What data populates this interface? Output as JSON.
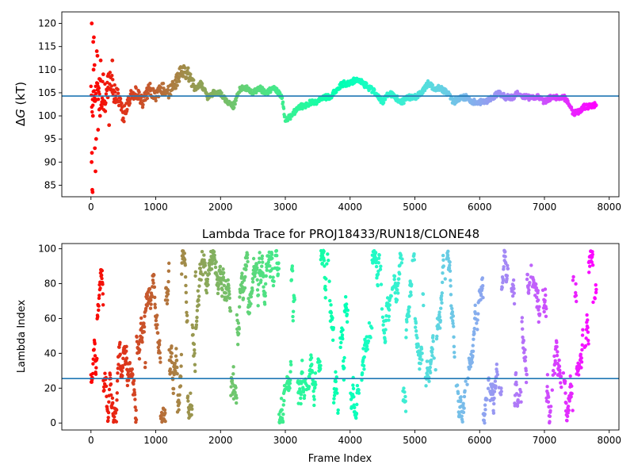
{
  "chart_data": [
    {
      "type": "scatter",
      "title": "",
      "xlabel": "",
      "ylabel": "ΔG (kT)",
      "ylabel_parts": {
        "delta": "Δ",
        "var": "G",
        "unit": " (kT)"
      },
      "xlim": [
        -450,
        8150
      ],
      "ylim": [
        82.5,
        122.5
      ],
      "xticks": [
        0,
        1000,
        2000,
        3000,
        4000,
        5000,
        6000,
        7000,
        8000
      ],
      "yticks": [
        85,
        90,
        95,
        100,
        105,
        110,
        115,
        120
      ],
      "hline": 104.3,
      "n_frames": 7800,
      "colormap": "rainbow (red at frame 0, violet at last frame)",
      "grid": false,
      "legend": "none",
      "trace_knots": [
        [
          0,
          104
        ],
        [
          50,
          104
        ],
        [
          100,
          106
        ],
        [
          150,
          104
        ],
        [
          200,
          104
        ],
        [
          300,
          107
        ],
        [
          400,
          104
        ],
        [
          500,
          100
        ],
        [
          600,
          104
        ],
        [
          700,
          105
        ],
        [
          800,
          103
        ],
        [
          900,
          106
        ],
        [
          1000,
          104
        ],
        [
          1100,
          106
        ],
        [
          1200,
          105
        ],
        [
          1300,
          107
        ],
        [
          1400,
          110
        ],
        [
          1500,
          109
        ],
        [
          1600,
          106
        ],
        [
          1700,
          107
        ],
        [
          1800,
          104
        ],
        [
          1900,
          105
        ],
        [
          2000,
          105
        ],
        [
          2100,
          103
        ],
        [
          2200,
          102
        ],
        [
          2300,
          106
        ],
        [
          2400,
          106
        ],
        [
          2500,
          105
        ],
        [
          2600,
          106
        ],
        [
          2700,
          105
        ],
        [
          2800,
          106
        ],
        [
          2900,
          105
        ],
        [
          2950,
          104
        ],
        [
          3000,
          99
        ],
        [
          3100,
          100
        ],
        [
          3200,
          102
        ],
        [
          3300,
          102
        ],
        [
          3400,
          103
        ],
        [
          3500,
          103
        ],
        [
          3600,
          104
        ],
        [
          3700,
          104
        ],
        [
          3800,
          106
        ],
        [
          3900,
          107
        ],
        [
          4000,
          107
        ],
        [
          4100,
          108
        ],
        [
          4200,
          107
        ],
        [
          4300,
          106
        ],
        [
          4400,
          105
        ],
        [
          4500,
          103
        ],
        [
          4600,
          105
        ],
        [
          4700,
          104
        ],
        [
          4800,
          103
        ],
        [
          4900,
          104
        ],
        [
          5000,
          104
        ],
        [
          5100,
          105
        ],
        [
          5200,
          107
        ],
        [
          5300,
          106
        ],
        [
          5400,
          106
        ],
        [
          5500,
          105
        ],
        [
          5600,
          103
        ],
        [
          5700,
          104
        ],
        [
          5800,
          104
        ],
        [
          5900,
          103
        ],
        [
          6000,
          103
        ],
        [
          6100,
          103
        ],
        [
          6200,
          104
        ],
        [
          6300,
          105
        ],
        [
          6400,
          104
        ],
        [
          6500,
          104
        ],
        [
          6600,
          105
        ],
        [
          6700,
          104
        ],
        [
          6800,
          104
        ],
        [
          6900,
          104
        ],
        [
          7000,
          103
        ],
        [
          7100,
          104
        ],
        [
          7200,
          104
        ],
        [
          7300,
          104
        ],
        [
          7400,
          102
        ],
        [
          7450,
          100.5
        ],
        [
          7550,
          101
        ],
        [
          7600,
          102
        ],
        [
          7700,
          102
        ],
        [
          7800,
          102.5
        ]
      ],
      "early_points": [
        [
          12,
          120
        ],
        [
          20,
          84
        ],
        [
          25,
          83.5
        ],
        [
          10,
          90
        ],
        [
          15,
          92
        ],
        [
          30,
          100
        ],
        [
          40,
          110
        ],
        [
          35,
          116
        ],
        [
          45,
          117
        ],
        [
          55,
          111
        ],
        [
          60,
          93
        ],
        [
          70,
          88
        ],
        [
          80,
          95
        ],
        [
          90,
          114
        ],
        [
          100,
          113
        ],
        [
          110,
          97
        ],
        [
          120,
          106
        ],
        [
          130,
          108
        ],
        [
          140,
          100
        ],
        [
          150,
          112
        ],
        [
          170,
          103
        ],
        [
          190,
          109
        ],
        [
          220,
          101
        ],
        [
          260,
          104
        ],
        [
          280,
          98
        ],
        [
          330,
          112
        ]
      ]
    },
    {
      "type": "scatter",
      "title": "Lambda Trace for PROJ18433/RUN18/CLONE48",
      "xlabel": "Frame Index",
      "ylabel": "Lambda Index",
      "xlim": [
        -450,
        8150
      ],
      "ylim": [
        -4,
        103
      ],
      "xticks": [
        0,
        1000,
        2000,
        3000,
        4000,
        5000,
        6000,
        7000,
        8000
      ],
      "yticks": [
        0,
        20,
        40,
        60,
        80,
        100
      ],
      "hline": 25.5,
      "n_frames": 7800,
      "value_range": [
        0,
        99
      ],
      "colormap": "rainbow (red at frame 0, violet at last frame)",
      "grid": false,
      "legend": "none"
    }
  ]
}
